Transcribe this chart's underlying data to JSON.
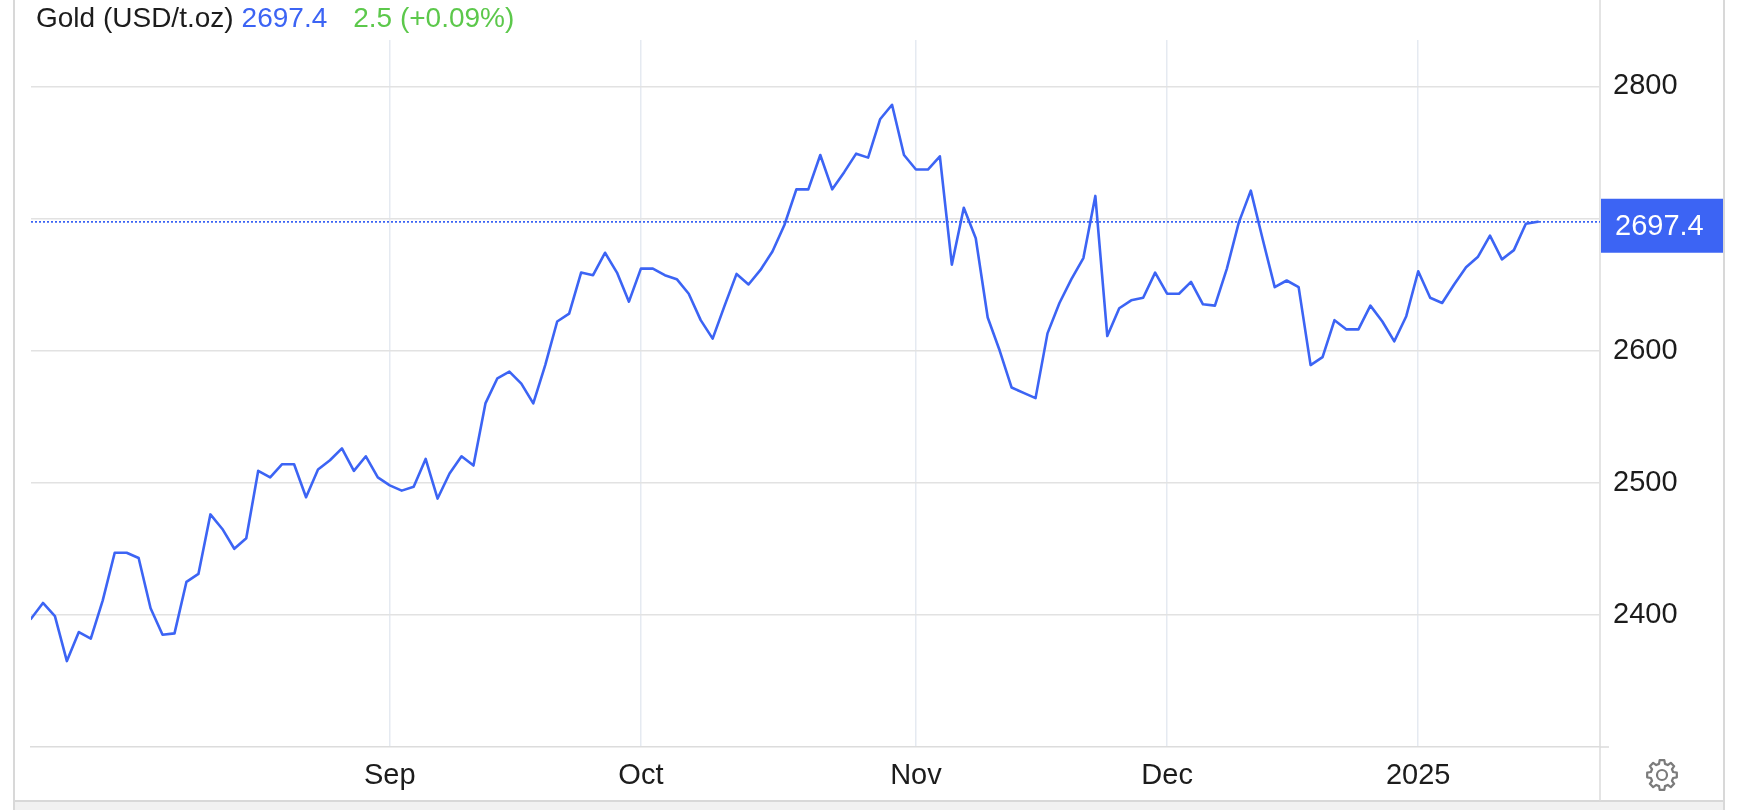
{
  "chart_data": {
    "type": "line",
    "title": "Gold (USD/t.oz)",
    "annotations": [
      "2697.4",
      "2.5 (+0.09%)"
    ],
    "categories": [
      null,
      null,
      null,
      null,
      null,
      null,
      null,
      null,
      null,
      null,
      null,
      null,
      null,
      null,
      null,
      null,
      null,
      null,
      null,
      null,
      null,
      null,
      null,
      null,
      null,
      null,
      null,
      null,
      null,
      null,
      "Sep",
      null,
      null,
      null,
      null,
      null,
      null,
      null,
      null,
      null,
      null,
      null,
      null,
      null,
      null,
      null,
      null,
      null,
      null,
      null,
      null,
      "Oct",
      null,
      null,
      null,
      null,
      null,
      null,
      null,
      null,
      null,
      null,
      null,
      null,
      null,
      null,
      null,
      null,
      null,
      null,
      null,
      null,
      null,
      null,
      "Nov",
      null,
      null,
      null,
      null,
      null,
      null,
      null,
      null,
      null,
      null,
      null,
      null,
      null,
      null,
      null,
      null,
      null,
      null,
      null,
      null,
      "Dec",
      null,
      null,
      null,
      null,
      null,
      null,
      null,
      null,
      null,
      null,
      null,
      null,
      null,
      null,
      null,
      null,
      null,
      null,
      null,
      null,
      "2025",
      null,
      null,
      null,
      null,
      null,
      null,
      null,
      null,
      null,
      null
    ],
    "series": [
      {
        "color": "#3c64f4",
        "values": [
          2397,
          2409,
          2399,
          2365,
          2387,
          2382,
          2411,
          2447,
          2447,
          2443,
          2405,
          2385,
          2386,
          2425,
          2431,
          2476,
          2465,
          2450,
          2458,
          2509,
          2504,
          2514,
          2514,
          2489,
          2510,
          2517,
          2526,
          2509,
          2520,
          2504,
          2498,
          2494,
          2497,
          2518,
          2488,
          2507,
          2520,
          2513,
          2560,
          2579,
          2584,
          2575,
          2560,
          2589,
          2622,
          2628,
          2659,
          2657,
          2674,
          2659,
          2637,
          2662,
          2662,
          2657,
          2654,
          2643,
          2623,
          2609,
          2634,
          2658,
          2650,
          2661,
          2675,
          2695,
          2722,
          2722,
          2748,
          2722,
          2735,
          2749,
          2746,
          2775,
          2786,
          2748,
          2737,
          2737,
          2747,
          2665,
          2708,
          2685,
          2625,
          2600,
          2572,
          2568,
          2564,
          2613,
          2636,
          2654,
          2670,
          2717,
          2611,
          2632,
          2638,
          2640,
          2659,
          2643,
          2643,
          2652,
          2635,
          2634,
          2662,
          2697,
          2721,
          2684,
          2648,
          2653,
          2648,
          2589,
          2595,
          2623,
          2616,
          2616,
          2634,
          2622,
          2607,
          2626,
          2660,
          2640,
          2636,
          2650,
          2663,
          2671,
          2687,
          2669,
          2676,
          2696,
          2697.4
        ]
      }
    ],
    "ylim": [
      2300,
      2835
    ],
    "yticks": [
      2400,
      2500,
      2600,
      {
        "value": 2700,
        "label": null
      },
      2800
    ],
    "grid": true,
    "ref_lines": [
      {
        "axis": "y",
        "value": 2697.4,
        "label": "2697.4",
        "color": "#3c64f4",
        "line_style": "dotted"
      }
    ]
  }
}
